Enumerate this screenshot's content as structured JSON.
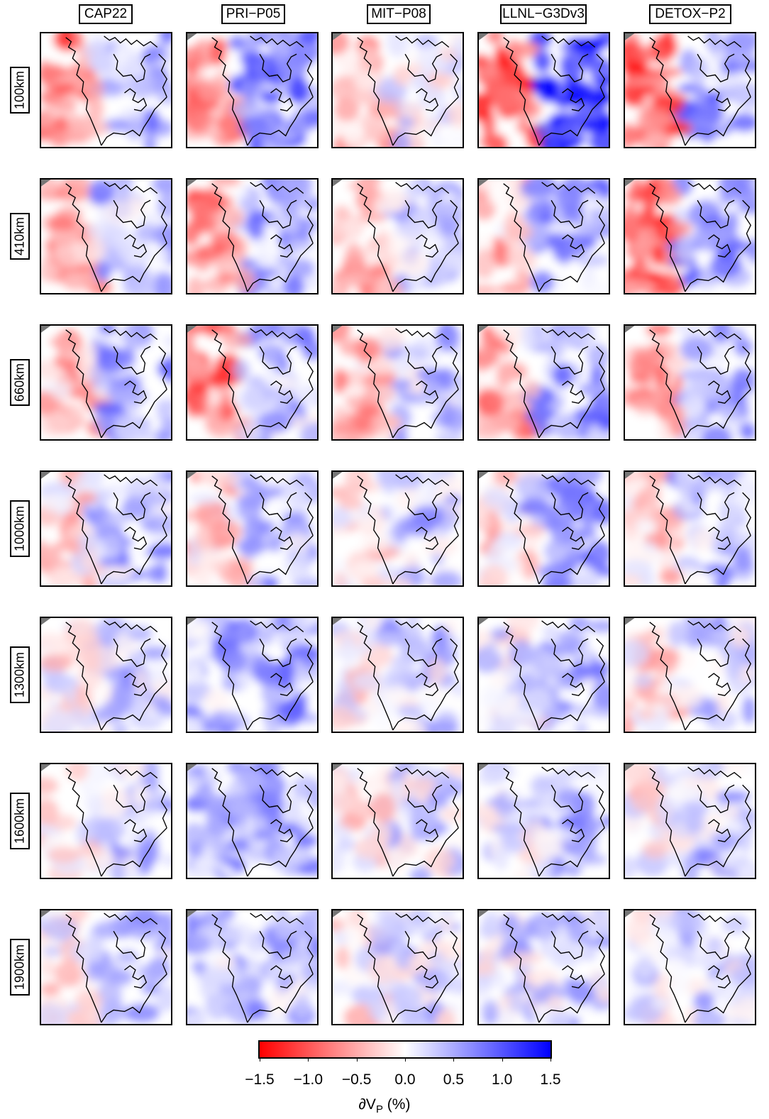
{
  "models": [
    "CAP22",
    "PRI−P05",
    "MIT−P08",
    "LLNL−G3Dv3",
    "DETOX−P2"
  ],
  "depths": [
    "100km",
    "410km",
    "660km",
    "1000km",
    "1300km",
    "1600km",
    "1900km"
  ],
  "colorbar": {
    "ticks": [
      "−1.5",
      "−1.0",
      "−0.5",
      "0.0",
      "0.5",
      "1.0",
      "1.5"
    ],
    "label_main": "∂V",
    "label_sub": "P",
    "label_unit": " (%)",
    "min_color": "#ff0000",
    "mid_color": "#ffffff",
    "max_color": "#0000ff"
  }
}
